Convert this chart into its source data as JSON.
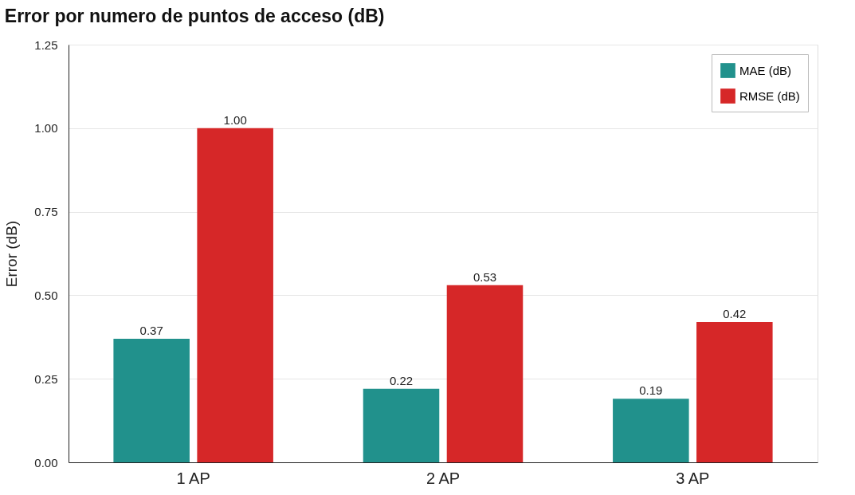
{
  "chart_data": {
    "type": "bar",
    "title": "Error por numero de puntos de acceso (dB)",
    "ylabel": "Error (dB)",
    "categories": [
      "1 AP",
      "2 AP",
      "3 AP"
    ],
    "series": [
      {
        "name": "MAE (dB)",
        "color": "#21918c",
        "values": [
          0.37,
          0.22,
          0.19
        ],
        "value_labels": [
          "0.37",
          "0.22",
          "0.19"
        ]
      },
      {
        "name": "RMSE (dB)",
        "color": "#d62728",
        "values": [
          1.0,
          0.53,
          0.42
        ],
        "value_labels": [
          "1.00",
          "0.53",
          "0.42"
        ]
      }
    ],
    "ylim": [
      0,
      1.25
    ],
    "yticks": [
      {
        "value": 0,
        "label": "0.00"
      },
      {
        "value": 0.25,
        "label": "0.25"
      },
      {
        "value": 0.5,
        "label": "0.50"
      },
      {
        "value": 0.75,
        "label": "0.75"
      },
      {
        "value": 1,
        "label": "1.00"
      },
      {
        "value": 1.25,
        "label": "1.25"
      }
    ],
    "grid": "y",
    "legend": "top right"
  }
}
